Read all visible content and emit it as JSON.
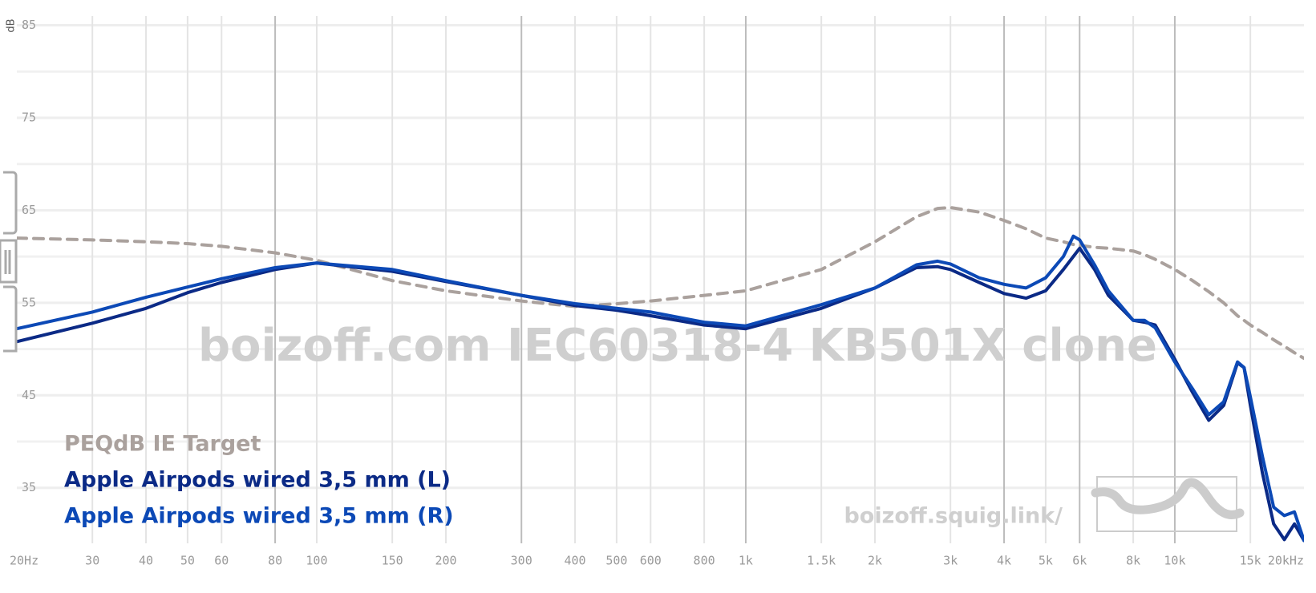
{
  "chart_data": {
    "type": "line",
    "log_x": true,
    "y_label": "dB",
    "watermark": "boizoff.com IEC60318-4 KB501X clone",
    "site_label": "boizoff.squig.link/",
    "x": [
      20,
      30,
      40,
      50,
      60,
      80,
      100,
      150,
      200,
      300,
      400,
      500,
      600,
      800,
      1000,
      1500,
      2000,
      2500,
      2800,
      3000,
      3500,
      4000,
      4500,
      5000,
      5500,
      5800,
      6000,
      6500,
      7000,
      8000,
      8500,
      9000,
      10000,
      11000,
      12000,
      13000,
      14000,
      14500,
      15000,
      16000,
      17000,
      18000,
      19000,
      20000
    ],
    "series": [
      {
        "name": "PEQdB IE Target",
        "color": "#aaa19d",
        "dashed": true,
        "values": [
          62.0,
          61.8,
          61.6,
          61.4,
          61.1,
          60.4,
          59.6,
          57.4,
          56.3,
          55.2,
          54.6,
          54.9,
          55.2,
          55.8,
          56.3,
          58.6,
          61.6,
          64.3,
          65.2,
          65.3,
          64.8,
          63.9,
          63.0,
          62.0,
          61.6,
          61.3,
          61.2,
          61.0,
          60.9,
          60.6,
          60.2,
          59.7,
          58.6,
          57.4,
          56.2,
          55.0,
          53.6,
          53.1,
          52.6,
          51.8,
          51.0,
          50.3,
          49.6,
          49.0
        ]
      },
      {
        "name": "Apple Airpods wired 3,5 mm (L)",
        "color": "#0b2a86",
        "values": [
          50.8,
          52.8,
          54.4,
          56.1,
          57.2,
          58.6,
          59.3,
          58.4,
          57.3,
          55.8,
          54.7,
          54.2,
          53.6,
          52.6,
          52.2,
          54.4,
          56.6,
          58.8,
          58.9,
          58.6,
          57.2,
          56.0,
          55.5,
          56.3,
          58.6,
          60.0,
          60.9,
          58.6,
          55.8,
          53.1,
          52.9,
          52.6,
          48.9,
          45.3,
          42.3,
          43.9,
          48.5,
          48.0,
          43.9,
          36.6,
          31.1,
          29.4,
          31.1,
          29.3
        ]
      },
      {
        "name": "Apple Airpods wired 3,5 mm (R)",
        "color": "#0c49b6",
        "values": [
          52.2,
          54.0,
          55.6,
          56.7,
          57.6,
          58.8,
          59.3,
          58.6,
          57.4,
          55.8,
          54.9,
          54.4,
          54.0,
          52.9,
          52.5,
          54.8,
          56.6,
          59.1,
          59.5,
          59.2,
          57.7,
          57.0,
          56.6,
          57.7,
          60.0,
          62.2,
          61.8,
          59.1,
          56.3,
          53.1,
          53.1,
          52.3,
          48.6,
          45.7,
          42.9,
          44.3,
          48.6,
          48.0,
          44.8,
          38.4,
          32.9,
          32.0,
          32.4,
          29.3
        ]
      }
    ],
    "xlim": [
      20,
      20000
    ],
    "ylim": [
      29,
      86
    ],
    "yticks": [
      35,
      45,
      55,
      65,
      75,
      85
    ],
    "yminor": [
      40,
      50,
      60,
      70,
      80
    ],
    "xticks": [
      {
        "value": 20,
        "label": "20Hz"
      },
      30,
      40,
      50,
      60,
      80,
      100,
      150,
      200,
      300,
      400,
      500,
      600,
      800,
      {
        "value": 1000,
        "label": "1k"
      },
      {
        "value": 1500,
        "label": "1.5k"
      },
      {
        "value": 2000,
        "label": "2k"
      },
      {
        "value": 3000,
        "label": "3k"
      },
      {
        "value": 4000,
        "label": "4k"
      },
      {
        "value": 5000,
        "label": "5k"
      },
      {
        "value": 6000,
        "label": "6k"
      },
      {
        "value": 8000,
        "label": "8k"
      },
      {
        "value": 10000,
        "label": "10k"
      },
      {
        "value": 15000,
        "label": "15k"
      },
      {
        "value": 20000,
        "label": "20kHz"
      }
    ],
    "xticks_strong": [
      80,
      300,
      1000,
      4000,
      6000,
      10000
    ],
    "grid": true
  }
}
